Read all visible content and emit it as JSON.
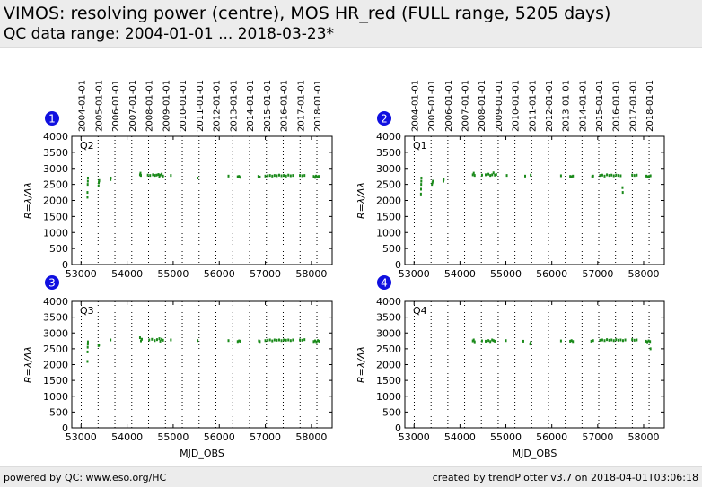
{
  "header": {
    "title": "VIMOS: resolving power (centre), MOS HR_red (FULL range, 5205 days)",
    "subtitle": "QC data range: 2004-01-01 ... 2018-03-23*"
  },
  "footer": {
    "left": "powered by QC: www.eso.org/HC",
    "right": "created by trendPlotter v3.7 on 2018-04-01T03:06:18"
  },
  "colors": {
    "data": "#1a8a1a",
    "badge": "#1010e0",
    "axis": "#000000"
  },
  "chart_data": {
    "type": "scatter",
    "xlabel": "MJD_OBS",
    "ylabel": "R=λ/Δλ",
    "xlim": [
      52800,
      58450
    ],
    "ylim": [
      0,
      4000
    ],
    "x_ticks": [
      53000,
      54000,
      55000,
      56000,
      57000,
      58000
    ],
    "y_ticks": [
      0,
      500,
      1000,
      1500,
      2000,
      2500,
      3000,
      3500,
      4000
    ],
    "year_lines": [
      {
        "label": "2004-01-01",
        "mjd": 53005
      },
      {
        "label": "2005-01-01",
        "mjd": 53371
      },
      {
        "label": "2006-01-01",
        "mjd": 53736
      },
      {
        "label": "2007-01-01",
        "mjd": 54101
      },
      {
        "label": "2008-01-01",
        "mjd": 54466
      },
      {
        "label": "2009-01-01",
        "mjd": 54832
      },
      {
        "label": "2010-01-01",
        "mjd": 55197
      },
      {
        "label": "2011-01-01",
        "mjd": 55562
      },
      {
        "label": "2012-01-01",
        "mjd": 55927
      },
      {
        "label": "2013-01-01",
        "mjd": 56293
      },
      {
        "label": "2014-01-01",
        "mjd": 56658
      },
      {
        "label": "2015-01-01",
        "mjd": 57023
      },
      {
        "label": "2016-01-01",
        "mjd": 57388
      },
      {
        "label": "2017-01-01",
        "mjd": 57754
      },
      {
        "label": "2018-01-01",
        "mjd": 58119
      }
    ],
    "panels": [
      {
        "badge": "1",
        "label": "Q2",
        "points": [
          [
            53140,
            2100
          ],
          [
            53140,
            2250
          ],
          [
            53145,
            2500
          ],
          [
            53148,
            2600
          ],
          [
            53150,
            2700
          ],
          [
            53380,
            2450
          ],
          [
            53385,
            2550
          ],
          [
            53390,
            2600
          ],
          [
            53395,
            2620
          ],
          [
            53640,
            2650
          ],
          [
            53645,
            2700
          ],
          [
            54280,
            2800
          ],
          [
            54290,
            2850
          ],
          [
            54300,
            2780
          ],
          [
            54450,
            2790
          ],
          [
            54500,
            2780
          ],
          [
            54560,
            2800
          ],
          [
            54600,
            2780
          ],
          [
            54640,
            2790
          ],
          [
            54680,
            2810
          ],
          [
            54700,
            2750
          ],
          [
            54720,
            2790
          ],
          [
            54750,
            2820
          ],
          [
            54780,
            2760
          ],
          [
            54950,
            2780
          ],
          [
            55530,
            2700
          ],
          [
            56200,
            2760
          ],
          [
            56400,
            2740
          ],
          [
            56430,
            2750
          ],
          [
            56460,
            2720
          ],
          [
            56850,
            2750
          ],
          [
            56880,
            2730
          ],
          [
            57000,
            2760
          ],
          [
            57050,
            2770
          ],
          [
            57100,
            2780
          ],
          [
            57150,
            2760
          ],
          [
            57200,
            2780
          ],
          [
            57250,
            2770
          ],
          [
            57300,
            2790
          ],
          [
            57350,
            2770
          ],
          [
            57400,
            2780
          ],
          [
            57450,
            2760
          ],
          [
            57500,
            2790
          ],
          [
            57550,
            2770
          ],
          [
            57600,
            2780
          ],
          [
            57750,
            2780
          ],
          [
            57800,
            2770
          ],
          [
            57850,
            2780
          ],
          [
            58050,
            2750
          ],
          [
            58080,
            2720
          ],
          [
            58100,
            2760
          ],
          [
            58130,
            2740
          ],
          [
            58160,
            2750
          ]
        ]
      },
      {
        "badge": "2",
        "label": "Q1",
        "points": [
          [
            53150,
            2200
          ],
          [
            53152,
            2350
          ],
          [
            53155,
            2500
          ],
          [
            53158,
            2600
          ],
          [
            53160,
            2700
          ],
          [
            53390,
            2500
          ],
          [
            53400,
            2550
          ],
          [
            53410,
            2600
          ],
          [
            53640,
            2600
          ],
          [
            53645,
            2650
          ],
          [
            54280,
            2800
          ],
          [
            54300,
            2850
          ],
          [
            54320,
            2780
          ],
          [
            54480,
            2790
          ],
          [
            54560,
            2800
          ],
          [
            54620,
            2820
          ],
          [
            54660,
            2780
          ],
          [
            54700,
            2800
          ],
          [
            54730,
            2860
          ],
          [
            54760,
            2790
          ],
          [
            54790,
            2810
          ],
          [
            55020,
            2780
          ],
          [
            55420,
            2760
          ],
          [
            55540,
            2790
          ],
          [
            56200,
            2770
          ],
          [
            56400,
            2750
          ],
          [
            56430,
            2740
          ],
          [
            56460,
            2760
          ],
          [
            56880,
            2740
          ],
          [
            56900,
            2760
          ],
          [
            57050,
            2780
          ],
          [
            57100,
            2790
          ],
          [
            57150,
            2760
          ],
          [
            57200,
            2800
          ],
          [
            57250,
            2780
          ],
          [
            57300,
            2790
          ],
          [
            57350,
            2770
          ],
          [
            57400,
            2790
          ],
          [
            57450,
            2780
          ],
          [
            57500,
            2770
          ],
          [
            57540,
            2400
          ],
          [
            57545,
            2250
          ],
          [
            57750,
            2790
          ],
          [
            57800,
            2780
          ],
          [
            57850,
            2790
          ],
          [
            58060,
            2760
          ],
          [
            58090,
            2740
          ],
          [
            58120,
            2750
          ],
          [
            58150,
            2770
          ]
        ]
      },
      {
        "badge": "3",
        "label": "Q3",
        "points": [
          [
            53140,
            2100
          ],
          [
            53142,
            2400
          ],
          [
            53145,
            2550
          ],
          [
            53148,
            2650
          ],
          [
            53150,
            2720
          ],
          [
            53380,
            2600
          ],
          [
            53390,
            2620
          ],
          [
            53640,
            2780
          ],
          [
            54280,
            2850
          ],
          [
            54300,
            2750
          ],
          [
            54320,
            2800
          ],
          [
            54480,
            2780
          ],
          [
            54540,
            2800
          ],
          [
            54600,
            2760
          ],
          [
            54650,
            2790
          ],
          [
            54700,
            2820
          ],
          [
            54720,
            2740
          ],
          [
            54750,
            2800
          ],
          [
            54780,
            2770
          ],
          [
            54950,
            2780
          ],
          [
            55530,
            2760
          ],
          [
            56200,
            2760
          ],
          [
            56400,
            2730
          ],
          [
            56430,
            2750
          ],
          [
            56460,
            2740
          ],
          [
            56860,
            2750
          ],
          [
            56880,
            2730
          ],
          [
            57000,
            2760
          ],
          [
            57050,
            2770
          ],
          [
            57100,
            2780
          ],
          [
            57150,
            2750
          ],
          [
            57200,
            2780
          ],
          [
            57250,
            2770
          ],
          [
            57300,
            2780
          ],
          [
            57350,
            2760
          ],
          [
            57400,
            2780
          ],
          [
            57450,
            2770
          ],
          [
            57500,
            2780
          ],
          [
            57550,
            2760
          ],
          [
            57600,
            2780
          ],
          [
            57750,
            2780
          ],
          [
            57800,
            2770
          ],
          [
            57850,
            2790
          ],
          [
            58050,
            2730
          ],
          [
            58080,
            2750
          ],
          [
            58110,
            2720
          ],
          [
            58140,
            2760
          ],
          [
            58170,
            2740
          ]
        ]
      },
      {
        "badge": "4",
        "label": "Q4",
        "points": [
          [
            54280,
            2750
          ],
          [
            54300,
            2780
          ],
          [
            54320,
            2720
          ],
          [
            54480,
            2750
          ],
          [
            54560,
            2740
          ],
          [
            54620,
            2760
          ],
          [
            54660,
            2730
          ],
          [
            54700,
            2780
          ],
          [
            54730,
            2760
          ],
          [
            54760,
            2740
          ],
          [
            55000,
            2760
          ],
          [
            55380,
            2740
          ],
          [
            55530,
            2650
          ],
          [
            55540,
            2700
          ],
          [
            56200,
            2750
          ],
          [
            56400,
            2740
          ],
          [
            56430,
            2760
          ],
          [
            56460,
            2730
          ],
          [
            56860,
            2740
          ],
          [
            56900,
            2760
          ],
          [
            57050,
            2770
          ],
          [
            57100,
            2780
          ],
          [
            57150,
            2760
          ],
          [
            57200,
            2790
          ],
          [
            57250,
            2770
          ],
          [
            57300,
            2780
          ],
          [
            57350,
            2760
          ],
          [
            57400,
            2790
          ],
          [
            57450,
            2770
          ],
          [
            57500,
            2780
          ],
          [
            57550,
            2760
          ],
          [
            57600,
            2780
          ],
          [
            57750,
            2790
          ],
          [
            57800,
            2770
          ],
          [
            57850,
            2780
          ],
          [
            58050,
            2740
          ],
          [
            58080,
            2720
          ],
          [
            58110,
            2750
          ],
          [
            58140,
            2730
          ],
          [
            58150,
            2500
          ]
        ]
      }
    ]
  }
}
